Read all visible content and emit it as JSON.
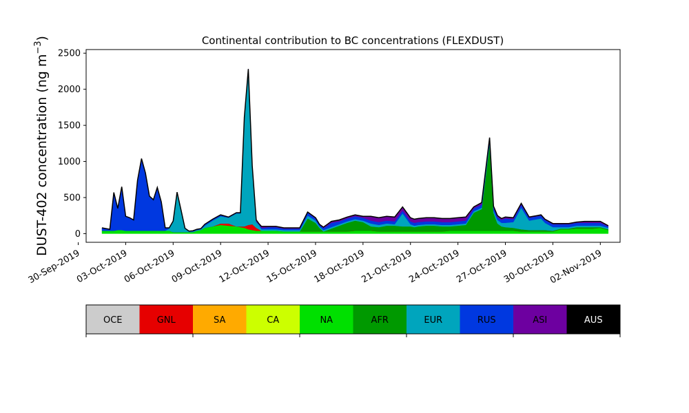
{
  "chart_data": {
    "type": "area",
    "title": "Continental contribution to BC concentrations (FLEXDUST)",
    "ylabel": "DUST-402 concentration (ng m",
    "ylabel_sup": "−3",
    "ylabel_end": ")",
    "xlabel": "",
    "ylim": [
      -120,
      2550
    ],
    "y_ticks": [
      0,
      500,
      1000,
      1500,
      2000,
      2500
    ],
    "xlim": [
      "2019-09-30T12:00",
      "2019-11-03T06:00"
    ],
    "x_tick_dates": [
      "2019-09-30",
      "2019-10-03",
      "2019-10-06",
      "2019-10-09",
      "2019-10-12",
      "2019-10-15",
      "2019-10-18",
      "2019-10-21",
      "2019-10-24",
      "2019-10-27",
      "2019-10-30",
      "2019-11-02"
    ],
    "x_tick_labels": [
      "30-Sep-2019",
      "03-Oct-2019",
      "06-Oct-2019",
      "09-Oct-2019",
      "12-Oct-2019",
      "15-Oct-2019",
      "18-Oct-2019",
      "21-Oct-2019",
      "24-Oct-2019",
      "27-Oct-2019",
      "30-Oct-2019",
      "02-Nov-2019"
    ],
    "stack_order": [
      "NA",
      "GNL",
      "AFR",
      "EUR",
      "RUS",
      "ASI"
    ],
    "x": [
      "2019-10-01 12:00",
      "2019-10-02 00:00",
      "2019-10-02 06:00",
      "2019-10-02 12:00",
      "2019-10-02 18:00",
      "2019-10-03 00:00",
      "2019-10-03 06:00",
      "2019-10-03 12:00",
      "2019-10-03 18:00",
      "2019-10-04 00:00",
      "2019-10-04 06:00",
      "2019-10-04 12:00",
      "2019-10-04 18:00",
      "2019-10-05 00:00",
      "2019-10-05 06:00",
      "2019-10-05 12:00",
      "2019-10-05 18:00",
      "2019-10-06 00:00",
      "2019-10-06 06:00",
      "2019-10-06 12:00",
      "2019-10-06 18:00",
      "2019-10-07 00:00",
      "2019-10-07 06:00",
      "2019-10-07 12:00",
      "2019-10-07 18:00",
      "2019-10-08 00:00",
      "2019-10-08 12:00",
      "2019-10-09 00:00",
      "2019-10-09 12:00",
      "2019-10-10 00:00",
      "2019-10-10 06:00",
      "2019-10-10 12:00",
      "2019-10-10 18:00",
      "2019-10-11 00:00",
      "2019-10-11 06:00",
      "2019-10-11 10:00",
      "2019-10-11 14:00",
      "2019-10-11 18:00",
      "2019-10-12 00:00",
      "2019-10-12 06:00",
      "2019-10-12 12:00",
      "2019-10-13 00:00",
      "2019-10-13 12:00",
      "2019-10-14 00:00",
      "2019-10-14 12:00",
      "2019-10-15 00:00",
      "2019-10-15 06:00",
      "2019-10-15 12:00",
      "2019-10-15 18:00",
      "2019-10-16 00:00",
      "2019-10-16 12:00",
      "2019-10-17 00:00",
      "2019-10-17 12:00",
      "2019-10-18 00:00",
      "2019-10-18 12:00",
      "2019-10-19 00:00",
      "2019-10-19 12:00",
      "2019-10-20 00:00",
      "2019-10-20 12:00",
      "2019-10-21 00:00",
      "2019-10-21 06:00",
      "2019-10-21 12:00",
      "2019-10-22 00:00",
      "2019-10-22 12:00",
      "2019-10-23 00:00",
      "2019-10-23 12:00",
      "2019-10-24 00:00",
      "2019-10-24 12:00",
      "2019-10-25 00:00",
      "2019-10-25 12:00",
      "2019-10-26 00:00",
      "2019-10-26 06:00",
      "2019-10-26 12:00",
      "2019-10-26 18:00",
      "2019-10-27 00:00",
      "2019-10-27 12:00",
      "2019-10-28 00:00",
      "2019-10-28 12:00",
      "2019-10-29 00:00",
      "2019-10-29 06:00",
      "2019-10-29 12:00",
      "2019-10-30 00:00",
      "2019-10-30 12:00",
      "2019-10-31 00:00",
      "2019-10-31 12:00",
      "2019-11-01 00:00",
      "2019-11-01 12:00",
      "2019-11-02 00:00",
      "2019-11-02 12:00"
    ],
    "series": [
      {
        "name": "NA",
        "color": "#00e000",
        "values": [
          40,
          40,
          40,
          50,
          50,
          40,
          40,
          40,
          40,
          40,
          40,
          40,
          40,
          40,
          40,
          40,
          40,
          20,
          20,
          20,
          20,
          20,
          20,
          40,
          50,
          80,
          100,
          120,
          110,
          100,
          90,
          80,
          60,
          50,
          40,
          40,
          40,
          40,
          40,
          40,
          40,
          30,
          30,
          30,
          30,
          30,
          30,
          30,
          30,
          30,
          30,
          30,
          40,
          40,
          40,
          30,
          30,
          30,
          30,
          30,
          30,
          30,
          30,
          30,
          30,
          40,
          40,
          40,
          40,
          40,
          40,
          40,
          40,
          40,
          40,
          40,
          30,
          30,
          30,
          30,
          30,
          30,
          60,
          60,
          70,
          70,
          70,
          80,
          50
        ]
      },
      {
        "name": "GNL",
        "color": "#e60000",
        "values": [
          0,
          0,
          0,
          0,
          0,
          0,
          0,
          0,
          0,
          0,
          0,
          0,
          0,
          0,
          0,
          0,
          0,
          0,
          0,
          0,
          0,
          0,
          0,
          0,
          0,
          0,
          0,
          20,
          30,
          0,
          10,
          20,
          60,
          80,
          40,
          20,
          0,
          0,
          0,
          0,
          0,
          0,
          0,
          0,
          0,
          0,
          0,
          0,
          0,
          0,
          0,
          0,
          0,
          0,
          0,
          0,
          0,
          0,
          0,
          0,
          0,
          0,
          0,
          0,
          0,
          0,
          0,
          0,
          0,
          0,
          0,
          0,
          0,
          0,
          0,
          0,
          0,
          0,
          0,
          0,
          0,
          0,
          0,
          0,
          0,
          0,
          0,
          0,
          0
        ]
      },
      {
        "name": "AFR",
        "color": "#009900",
        "values": [
          0,
          0,
          0,
          0,
          0,
          0,
          0,
          0,
          0,
          0,
          0,
          0,
          0,
          0,
          0,
          0,
          0,
          0,
          0,
          0,
          0,
          0,
          0,
          0,
          0,
          0,
          0,
          0,
          0,
          0,
          0,
          0,
          0,
          0,
          0,
          0,
          0,
          0,
          0,
          0,
          0,
          0,
          0,
          0,
          180,
          120,
          50,
          0,
          20,
          40,
          80,
          120,
          140,
          120,
          60,
          60,
          80,
          80,
          70,
          70,
          60,
          70,
          80,
          80,
          70,
          60,
          70,
          80,
          250,
          300,
          1200,
          250,
          100,
          60,
          50,
          40,
          30,
          20,
          20,
          20,
          20,
          10,
          10,
          10,
          20,
          20,
          20,
          10,
          10
        ]
      },
      {
        "name": "EUR",
        "color": "#00a5bd",
        "values": [
          0,
          0,
          0,
          0,
          0,
          0,
          0,
          0,
          0,
          0,
          0,
          0,
          0,
          0,
          0,
          0,
          30,
          150,
          550,
          300,
          50,
          10,
          10,
          10,
          10,
          30,
          80,
          100,
          80,
          180,
          180,
          1500,
          2150,
          800,
          80,
          60,
          20,
          20,
          20,
          20,
          20,
          20,
          20,
          20,
          40,
          30,
          20,
          20,
          20,
          20,
          20,
          20,
          20,
          20,
          40,
          30,
          30,
          20,
          180,
          30,
          20,
          20,
          20,
          20,
          20,
          20,
          20,
          20,
          20,
          20,
          30,
          30,
          50,
          50,
          60,
          80,
          300,
          130,
          150,
          160,
          100,
          50,
          20,
          20,
          20,
          20,
          20,
          20,
          20
        ]
      },
      {
        "name": "RUS",
        "color": "#0038e0",
        "values": [
          40,
          20,
          530,
          300,
          600,
          200,
          180,
          150,
          700,
          1000,
          800,
          480,
          430,
          600,
          400,
          40,
          10,
          5,
          5,
          5,
          5,
          5,
          10,
          10,
          10,
          20,
          20,
          20,
          10,
          10,
          10,
          10,
          10,
          10,
          10,
          10,
          20,
          20,
          30,
          30,
          30,
          20,
          20,
          20,
          40,
          30,
          20,
          30,
          40,
          60,
          40,
          40,
          40,
          40,
          40,
          40,
          40,
          40,
          40,
          40,
          40,
          40,
          40,
          40,
          40,
          40,
          40,
          40,
          40,
          40,
          40,
          40,
          40,
          40,
          60,
          40,
          40,
          40,
          40,
          40,
          40,
          40,
          40,
          40,
          40,
          40,
          40,
          40,
          20
        ]
      },
      {
        "name": "ASI",
        "color": "#6d00a0",
        "values": [
          0,
          0,
          0,
          0,
          0,
          0,
          0,
          0,
          0,
          0,
          0,
          0,
          0,
          0,
          0,
          0,
          0,
          0,
          0,
          0,
          0,
          0,
          0,
          0,
          0,
          0,
          0,
          0,
          0,
          0,
          0,
          0,
          0,
          0,
          20,
          10,
          20,
          20,
          10,
          10,
          10,
          10,
          10,
          10,
          10,
          10,
          10,
          10,
          20,
          20,
          20,
          20,
          20,
          20,
          60,
          60,
          60,
          60,
          50,
          50,
          50,
          50,
          50,
          50,
          50,
          50,
          50,
          50,
          20,
          30,
          20,
          20,
          20,
          20,
          20,
          20,
          20,
          10,
          10,
          10,
          10,
          10,
          10,
          10,
          10,
          20,
          20,
          20,
          10
        ]
      }
    ],
    "legend": [
      {
        "label": "OCE",
        "color": "#cccccc",
        "text_color": "#000000"
      },
      {
        "label": "GNL",
        "color": "#e60000",
        "text_color": "#000000"
      },
      {
        "label": "SA",
        "color": "#ffaa00",
        "text_color": "#000000"
      },
      {
        "label": "CA",
        "color": "#ccff00",
        "text_color": "#000000"
      },
      {
        "label": "NA",
        "color": "#00e000",
        "text_color": "#000000"
      },
      {
        "label": "AFR",
        "color": "#009900",
        "text_color": "#000000"
      },
      {
        "label": "EUR",
        "color": "#00a5bd",
        "text_color": "#000000"
      },
      {
        "label": "RUS",
        "color": "#0038e0",
        "text_color": "#000000"
      },
      {
        "label": "ASI",
        "color": "#6d00a0",
        "text_color": "#000000"
      },
      {
        "label": "AUS",
        "color": "#000000",
        "text_color": "#ffffff"
      }
    ],
    "legend_placement": "bottom",
    "grid": false,
    "total_line_color": "#000000"
  }
}
